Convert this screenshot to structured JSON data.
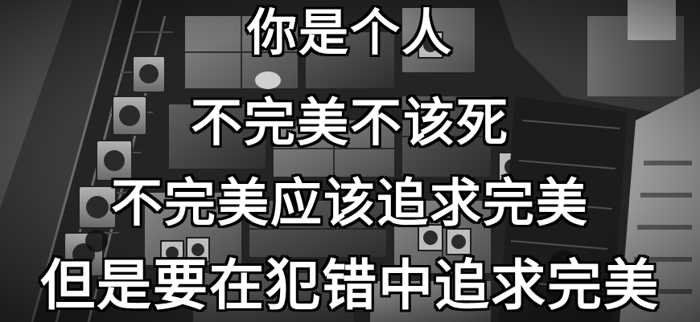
{
  "image": {
    "style": "grayscale",
    "colors": {
      "caption_text": "#ffffff",
      "caption_outline": "#000000"
    }
  },
  "caption": {
    "line1": "你是个人",
    "line2": "不完美不该死",
    "line3": "不完美应该追求完美",
    "line4": "但是要在犯错中追求完美"
  }
}
